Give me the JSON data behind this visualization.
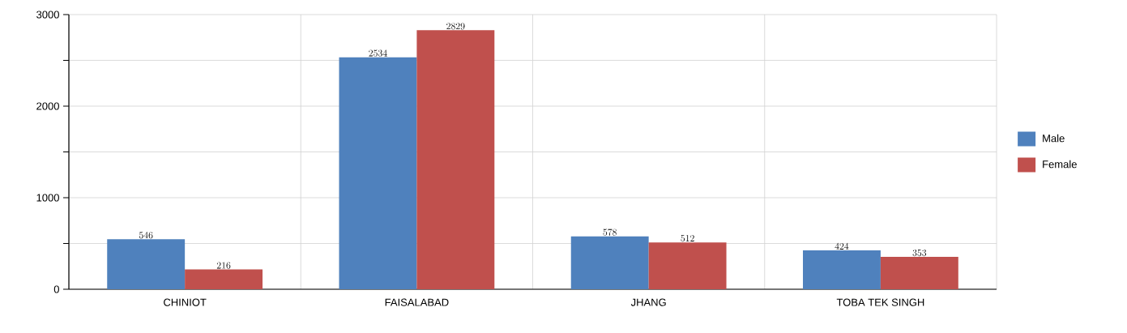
{
  "chart_data": {
    "type": "bar",
    "categories": [
      "CHINIOT",
      "FAISALABAD",
      "JHANG",
      "TOBA TEK SINGH"
    ],
    "series": [
      {
        "name": "Male",
        "color": "#4f81bd",
        "values": [
          546,
          2534,
          578,
          424
        ]
      },
      {
        "name": "Female",
        "color": "#c0504d",
        "values": [
          216,
          2829,
          512,
          353
        ]
      }
    ],
    "ylim": [
      0,
      3000
    ],
    "yticks": [
      0,
      {
        "value": 500,
        "label": null
      },
      1000,
      {
        "value": 1500,
        "label": null
      },
      2000,
      {
        "value": 2500,
        "label": null
      },
      3000
    ],
    "grid": true,
    "legend": "right",
    "data_labels": true
  }
}
